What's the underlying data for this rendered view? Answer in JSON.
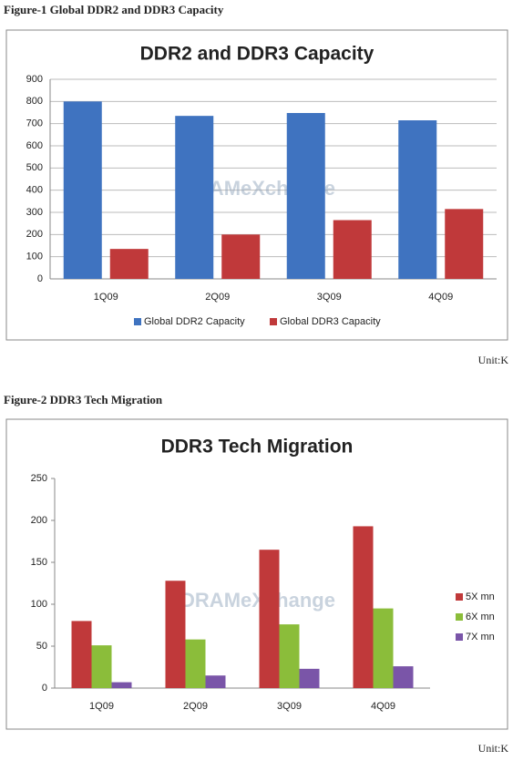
{
  "chart_data": [
    {
      "type": "bar",
      "caption": "Figure-1 Global DDR2 and DDR3 Capacity",
      "title": "DDR2 and DDR3 Capacity",
      "watermark": "DRAMeXchange",
      "unit": "Unit:K",
      "categories": [
        "1Q09",
        "2Q09",
        "3Q09",
        "4Q09"
      ],
      "series": [
        {
          "name": "Global DDR2 Capacity",
          "color": "#3f73c0",
          "values": [
            800,
            735,
            748,
            715
          ]
        },
        {
          "name": "Global DDR3 Capacity",
          "color": "#c0393a",
          "values": [
            135,
            200,
            265,
            315
          ]
        }
      ],
      "ylim": [
        0,
        900
      ],
      "yticks": [
        0,
        100,
        200,
        300,
        400,
        500,
        600,
        700,
        800,
        900
      ],
      "grid": true,
      "legend": "bottom"
    },
    {
      "type": "bar",
      "caption": "Figure-2 DDR3 Tech Migration",
      "title": "DDR3 Tech Migration",
      "watermark": "DRAMeXchange",
      "unit": "Unit:K",
      "categories": [
        "1Q09",
        "2Q09",
        "3Q09",
        "4Q09"
      ],
      "series": [
        {
          "name": "5X mn",
          "color": "#c0393a",
          "values": [
            80,
            128,
            165,
            193
          ]
        },
        {
          "name": "6X mn",
          "color": "#8bbd3a",
          "values": [
            51,
            58,
            76,
            95
          ]
        },
        {
          "name": "7X mn",
          "color": "#7a55a8",
          "values": [
            7,
            15,
            23,
            26
          ]
        }
      ],
      "ylim": [
        0,
        250
      ],
      "yticks": [
        0,
        50,
        100,
        150,
        200,
        250
      ],
      "grid": false,
      "legend": "right"
    }
  ]
}
